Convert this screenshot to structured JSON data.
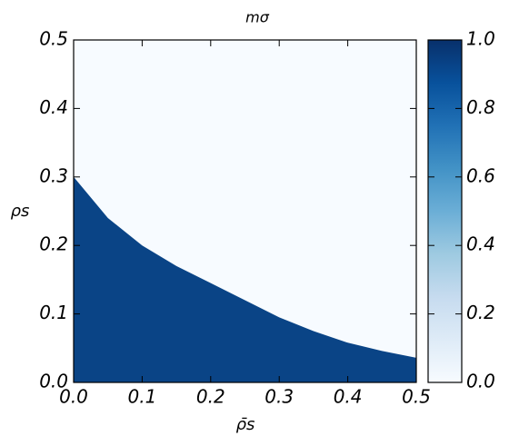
{
  "chart_data": {
    "type": "area",
    "title": "mσ",
    "xlabel": "ρ̄s",
    "ylabel": "ρs",
    "x": [
      0,
      0.05,
      0.1,
      0.15,
      0.2,
      0.25,
      0.3,
      0.35,
      0.4,
      0.45,
      0.5
    ],
    "values": [
      0.3,
      0.24,
      0.2,
      0.17,
      0.145,
      0.12,
      0.095,
      0.075,
      0.058,
      0.046,
      0.036
    ],
    "color": "#0a4486",
    "background": "#f7fbff",
    "xlim": [
      0,
      0.5
    ],
    "ylim": [
      0,
      0.5
    ],
    "xticks": [
      {
        "value": 0,
        "label": "0.0"
      },
      {
        "value": 0.1,
        "label": "0.1"
      },
      {
        "value": 0.2,
        "label": "0.2"
      },
      {
        "value": 0.3,
        "label": "0.3"
      },
      {
        "value": 0.4,
        "label": "0.4"
      },
      {
        "value": 0.5,
        "label": "0.5"
      }
    ],
    "yticks": [
      {
        "value": 0,
        "label": "0.0"
      },
      {
        "value": 0.1,
        "label": "0.1"
      },
      {
        "value": 0.2,
        "label": "0.2"
      },
      {
        "value": 0.3,
        "label": "0.3"
      },
      {
        "value": 0.4,
        "label": "0.4"
      },
      {
        "value": 0.5,
        "label": "0.5"
      }
    ],
    "colorbar": {
      "lim": [
        0,
        1
      ],
      "ticks": [
        {
          "value": 0,
          "label": "0.0"
        },
        {
          "value": 0.2,
          "label": "0.2"
        },
        {
          "value": 0.4,
          "label": "0.4"
        },
        {
          "value": 0.6,
          "label": "0.6"
        },
        {
          "value": 0.8,
          "label": "0.8"
        },
        {
          "value": 1,
          "label": "1.0"
        }
      ],
      "colors": [
        "#f7fbff",
        "#deebf7",
        "#c6dbef",
        "#9ecae1",
        "#6baed6",
        "#4292c6",
        "#2171b5",
        "#08519c",
        "#08306b"
      ]
    }
  }
}
